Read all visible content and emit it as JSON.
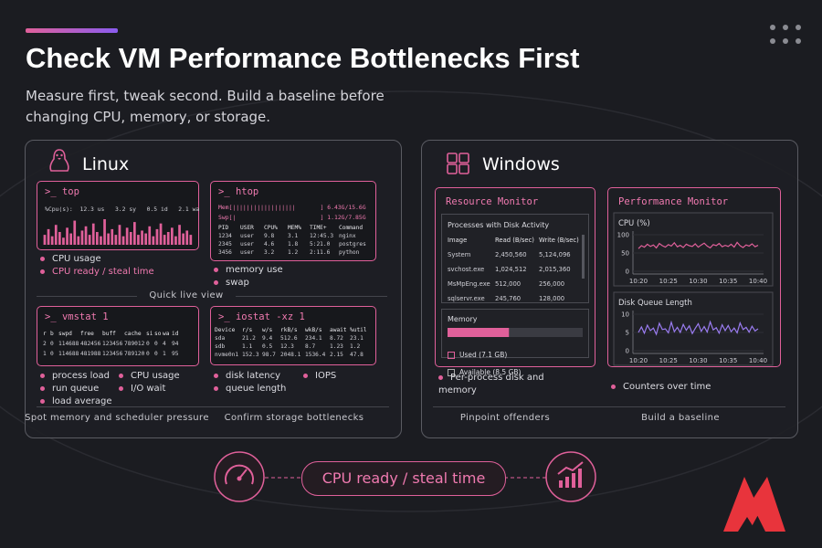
{
  "header": {
    "title": "Check VM Performance Bottlenecks First",
    "subtitle": "Measure first, tweak second. Build a baseline before changing CPU, memory, or storage."
  },
  "linux": {
    "title": "Linux",
    "top": {
      "command": ">_ top",
      "summary": "%Cpu(s):  12.3 us   3.2 sy   0.5 id   2.1 wa",
      "bars": [
        35,
        55,
        30,
        70,
        45,
        25,
        60,
        40,
        85,
        30,
        50,
        65,
        35,
        75,
        45,
        30,
        90,
        40,
        55,
        35,
        70,
        30,
        60,
        45,
        80,
        35,
        50,
        40,
        65,
        30,
        55,
        75,
        35,
        45,
        60,
        30,
        70,
        40,
        50,
        35
      ],
      "bullets": [
        "CPU usage",
        "CPU ready / steal time"
      ]
    },
    "htop": {
      "command": ">_ htop",
      "meters": [
        "Mem[||||||||||||||||||       ] 6.43G/15.6G",
        "Swp[|                        ] 1.12G/7.85G"
      ],
      "columns": [
        "PID",
        "USER",
        "CPU%",
        "MEM%",
        "TIME+",
        "Command"
      ],
      "rows": [
        [
          "1234",
          "user",
          "9.8",
          "3.1",
          "12:45.3",
          "nginx"
        ],
        [
          "2345",
          "user",
          "4.6",
          "1.8",
          "5:21.0",
          "postgres"
        ],
        [
          "3456",
          "user",
          "3.2",
          "1.2",
          "2:11.6",
          "python"
        ]
      ],
      "bullets": [
        "memory use",
        "swap"
      ]
    },
    "divider": "Quick live view",
    "vmstat": {
      "command": ">_ vmstat 1",
      "columns": [
        "r",
        "b",
        "swpd",
        "free",
        "buff",
        "cache",
        "si",
        "so",
        "wa",
        "id"
      ],
      "rows": [
        [
          "2",
          "0",
          "114688",
          "482456",
          "123456",
          "789012",
          "0",
          "0",
          "4",
          "94"
        ],
        [
          "1",
          "0",
          "114688",
          "481988",
          "123456",
          "789120",
          "0",
          "0",
          "1",
          "95"
        ]
      ],
      "bullets": [
        "process load",
        "run queue",
        "load average",
        "CPU usage",
        "I/O wait"
      ]
    },
    "iostat": {
      "command": ">_ iostat -xz 1",
      "columns": [
        "Device",
        "r/s",
        "w/s",
        "rkB/s",
        "wkB/s",
        "await",
        "%util"
      ],
      "rows": [
        [
          "sda",
          "21.2",
          "9.4",
          "512.6",
          "234.1",
          "8.72",
          "23.1"
        ],
        [
          "sdb",
          "1.1",
          "0.5",
          "12.3",
          "8.7",
          "1.23",
          "1.2"
        ],
        [
          "nvme0n1",
          "152.3",
          "98.7",
          "2048.1",
          "1536.4",
          "2.15",
          "47.8"
        ]
      ],
      "bullets": [
        "disk latency",
        "queue length",
        "IOPS"
      ]
    },
    "captions": [
      "Spot memory and scheduler pressure",
      "Confirm storage bottlenecks"
    ]
  },
  "windows": {
    "title": "Windows",
    "resource_monitor": {
      "title": "Resource Monitor",
      "table_title": "Processes with Disk Activity",
      "columns": [
        "Image",
        "Read (B/sec)",
        "Write (B/sec)"
      ],
      "rows": [
        [
          "System",
          "2,450,560",
          "5,124,096"
        ],
        [
          "svchost.exe",
          "1,024,512",
          "2,015,360"
        ],
        [
          "MsMpEng.exe",
          "512,000",
          "256,000"
        ],
        [
          "sqlservr.exe",
          "245,760",
          "128,000"
        ]
      ],
      "memory": {
        "title": "Memory",
        "segments": [
          {
            "label": "Used (7.1 GB)",
            "value": 7.1,
            "color": "#e0609a"
          },
          {
            "label": "Available (8.5 GB)",
            "value": 8.5,
            "color": "#3a3b42"
          }
        ]
      },
      "bullets": [
        "Per-process disk and memory"
      ]
    },
    "performance_monitor": {
      "title": "Performance Monitor",
      "charts": [
        {
          "title": "CPU (%)",
          "color": "#e0609a",
          "ylim": [
            0,
            100
          ],
          "yticks": [
            0,
            50,
            100
          ],
          "xticks": [
            "10:20",
            "10:25",
            "10:30",
            "10:35",
            "10:40"
          ],
          "values": [
            62,
            70,
            66,
            74,
            68,
            72,
            64,
            76,
            70,
            66,
            73,
            69,
            78,
            67,
            71,
            65,
            74,
            70,
            68,
            75,
            66,
            72,
            77,
            69,
            64,
            73,
            70,
            76,
            67,
            71,
            68,
            74,
            66,
            79,
            70,
            65,
            72,
            69,
            75,
            67,
            71
          ]
        },
        {
          "title": "Disk Queue Length",
          "color": "#9a7cf0",
          "ylim": [
            0,
            10
          ],
          "yticks": [
            0,
            5,
            10
          ],
          "xticks": [
            "10:20",
            "10:25",
            "10:30",
            "10:35",
            "10:40"
          ],
          "values": [
            5,
            6.5,
            4.8,
            7,
            5.5,
            6.2,
            4.5,
            7.5,
            5.8,
            6,
            4.9,
            7.8,
            5.2,
            6.4,
            5,
            7.2,
            5.6,
            6.8,
            4.7,
            6.1,
            7.4,
            5.3,
            6.6,
            5.1,
            7.9,
            5.7,
            6.3,
            4.8,
            7.1,
            5.5,
            6.9,
            5.2,
            6.2,
            4.9,
            7.6,
            5.8,
            6.4,
            5.1,
            6.7,
            5.4,
            6
          ]
        }
      ],
      "bullets": [
        "Counters over time"
      ]
    },
    "captions": [
      "Pinpoint offenders",
      "Build a baseline"
    ]
  },
  "footer": {
    "highlight": "CPU ready / steal time"
  }
}
